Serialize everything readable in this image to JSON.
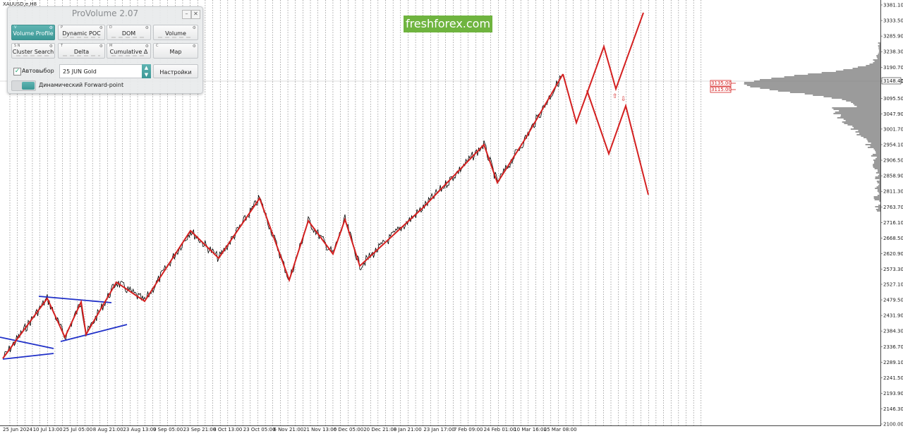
{
  "chart": {
    "symbol": "XAUUSD,e,H8",
    "brand": "freshforex.com",
    "price_axis": [
      "3381.10",
      "3333.50",
      "3285.90",
      "3238.30",
      "3190.70",
      "3148.40",
      "3095.50",
      "3047.90",
      "3001.70",
      "2954.10",
      "2906.50",
      "2858.90",
      "2811.30",
      "2763.70",
      "2716.10",
      "2668.50",
      "2620.90",
      "2573.30",
      "2527.10",
      "2479.50",
      "2431.90",
      "2384.30",
      "2336.70",
      "2289.10",
      "2241.50",
      "2193.90",
      "2146.30",
      "2100.00"
    ],
    "current_price": "3148.40",
    "level_labels": [
      "3135.00",
      "3115.00"
    ],
    "time_axis": [
      "25 Jun 2024",
      "10 Jul 13:00",
      "25 Jul 05:00",
      "8 Aug 21:00",
      "23 Aug 13:00",
      "9 Sep 05:00",
      "23 Sep 21:00",
      "8 Oct 13:00",
      "23 Oct 05:00",
      "6 Nov 21:00",
      "21 Nov 13:00",
      "6 Dec 05:00",
      "20 Dec 21:00",
      "8 Jan 21:00",
      "23 Jan 17:00",
      "7 Feb 09:00",
      "24 Feb 01:00",
      "10 Mar 16:00",
      "25 Mar 08:00"
    ],
    "colors": {
      "wave": "#d42020",
      "channel": "#2030c8",
      "price": "#000000",
      "profile": "#8a8a8a",
      "grid": "#555555"
    }
  },
  "panel": {
    "title": "ProVolume 2.07",
    "buttons": [
      {
        "label": "Volume Profile",
        "hotkey": "V",
        "active": true
      },
      {
        "label": "Dynamic POC",
        "hotkey": "P",
        "active": false
      },
      {
        "label": "DOM",
        "hotkey": "D",
        "active": false
      },
      {
        "label": "Volume",
        "hotkey": "",
        "active": false
      },
      {
        "label": "Cluster Search",
        "hotkey": "S  N",
        "active": false
      },
      {
        "label": "Delta",
        "hotkey": "T",
        "active": false
      },
      {
        "label": "Cumulative Δ",
        "hotkey": "M",
        "active": false
      },
      {
        "label": "Map",
        "hotkey": "C",
        "active": false
      }
    ],
    "auto_select_label": "Автовыбор",
    "symbol_value": "25 JUN Gold",
    "settings_label": "Настройки",
    "forward_point_label": "Динамический Forward-point"
  }
}
